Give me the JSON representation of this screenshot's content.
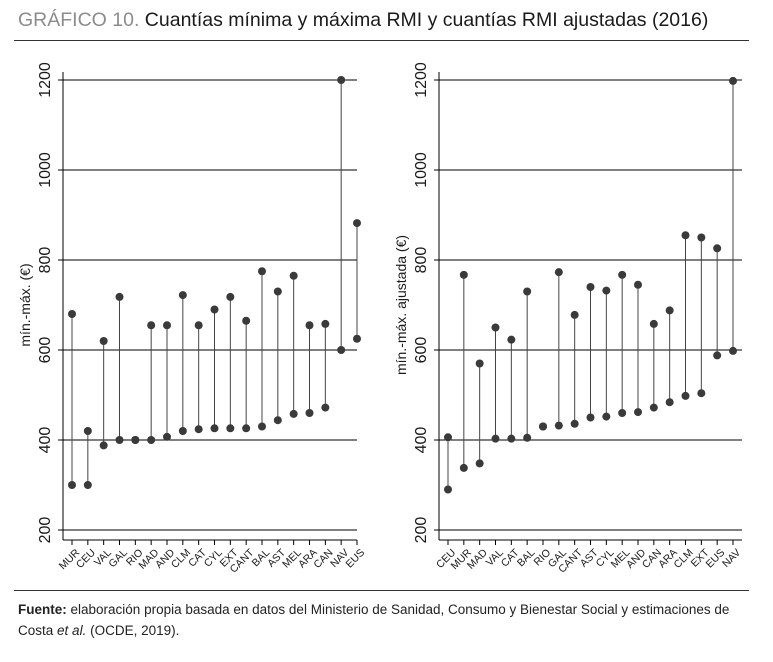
{
  "figure": {
    "label": "GRÁFICO 10.",
    "title": "Cuantías mínima y máxima RMI y cuantías RMI ajustadas (2016)",
    "source_label": "Fuente:",
    "source_text_1": "elaboración propia basada en datos del Ministerio de Sanidad, Consumo y Bienestar Social y estimaciones de Costa",
    "source_italic": "et al.",
    "source_text_2": "(OCDE, 2019)."
  },
  "chart_data": [
    {
      "type": "dumbbell",
      "ylabel": "mín.-máx. (€)",
      "ylim": [
        200,
        1200
      ],
      "yticks": [
        200,
        400,
        600,
        800,
        1000,
        1200
      ],
      "grid": true,
      "categories": [
        "MUR",
        "CEU",
        "VAL",
        "GAL",
        "RIO",
        "MAD",
        "AND",
        "CLM",
        "CAT",
        "CYL",
        "EXT",
        "CANT",
        "BAL",
        "AST",
        "MEL",
        "ARA",
        "CAN",
        "NAV",
        "EUS"
      ],
      "series": [
        {
          "name": "min",
          "values": [
            300,
            300,
            388,
            400,
            400,
            400,
            407,
            420,
            424,
            426,
            426,
            426,
            430,
            444,
            458,
            460,
            472,
            600,
            625
          ]
        },
        {
          "name": "max",
          "values": [
            680,
            420,
            620,
            718,
            400,
            655,
            655,
            722,
            655,
            690,
            718,
            665,
            775,
            730,
            765,
            655,
            658,
            1200,
            882
          ]
        }
      ]
    },
    {
      "type": "dumbbell",
      "ylabel": "mín.-máx. ajustada (€)",
      "ylim": [
        200,
        1200
      ],
      "yticks": [
        200,
        400,
        600,
        800,
        1000,
        1200
      ],
      "grid": true,
      "categories": [
        "CEU",
        "MUR",
        "MAD",
        "VAL",
        "CAT",
        "BAL",
        "RIO",
        "GAL",
        "CANT",
        "AST",
        "CYL",
        "MEL",
        "AND",
        "CAN",
        "ARA",
        "CLM",
        "EXT",
        "EUS",
        "NAV"
      ],
      "series": [
        {
          "name": "min",
          "values": [
            290,
            338,
            348,
            403,
            403,
            405,
            430,
            432,
            436,
            450,
            452,
            460,
            462,
            472,
            484,
            498,
            504,
            588,
            598
          ]
        },
        {
          "name": "max",
          "values": [
            406,
            767,
            570,
            650,
            623,
            730,
            430,
            773,
            678,
            740,
            732,
            767,
            745,
            658,
            688,
            855,
            850,
            826,
            1198
          ]
        }
      ]
    }
  ]
}
